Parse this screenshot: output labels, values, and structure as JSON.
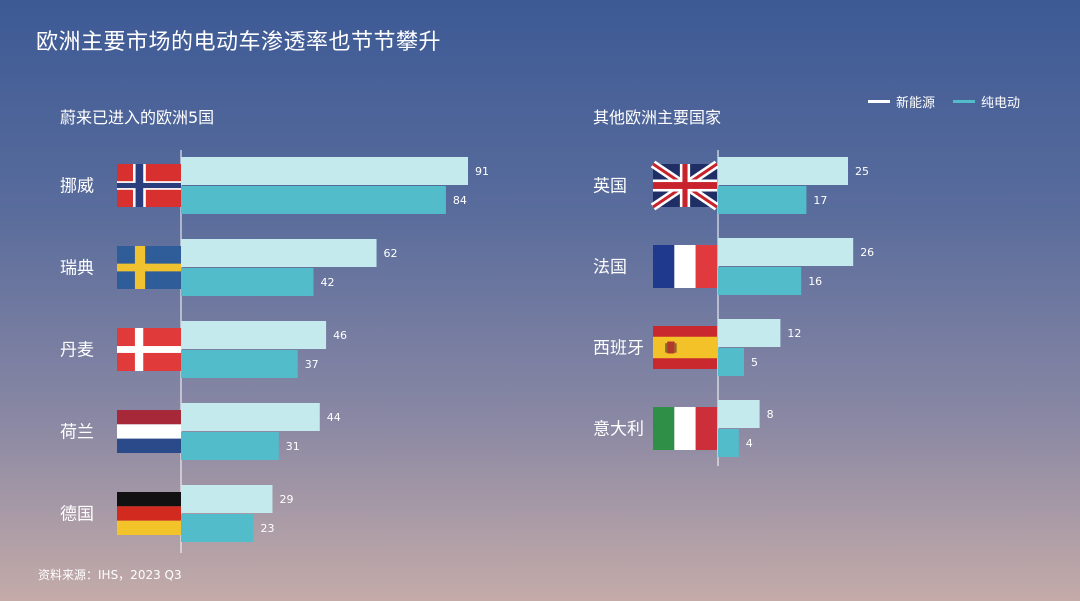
{
  "title": "欧洲主要市场的电动车渗透率也节节攀升",
  "source": "资料来源：IHS，2023 Q3",
  "colors": {
    "new_energy": "#c4eaee",
    "pure_electric": "#52bccb"
  },
  "chart_data": {
    "type": "bar",
    "orientation": "horizontal",
    "legend": {
      "position": "top-right",
      "entries": [
        {
          "name": "新能源",
          "color": "#c4eaee"
        },
        {
          "name": "纯电动",
          "color": "#52bccb"
        }
      ]
    },
    "panels": [
      {
        "subtitle": "蔚来已进入的欧洲5国",
        "categories": [
          "挪威",
          "瑞典",
          "丹麦",
          "荷兰",
          "德国"
        ],
        "flags": [
          "norway-flag",
          "sweden-flag",
          "denmark-flag",
          "netherlands-flag",
          "germany-flag"
        ],
        "series": [
          {
            "name": "新能源",
            "values": [
              91,
              62,
              46,
              44,
              29
            ]
          },
          {
            "name": "纯电动",
            "values": [
              84,
              42,
              37,
              31,
              23
            ]
          }
        ]
      },
      {
        "subtitle": "其他欧洲主要国家",
        "categories": [
          "英国",
          "法国",
          "西班牙",
          "意大利"
        ],
        "flags": [
          "uk-flag",
          "france-flag",
          "spain-flag",
          "italy-flag"
        ],
        "series": [
          {
            "name": "新能源",
            "values": [
              25,
              26,
              12,
              8
            ]
          },
          {
            "name": "纯电动",
            "values": [
              17,
              16,
              5,
              4
            ]
          }
        ]
      }
    ]
  }
}
